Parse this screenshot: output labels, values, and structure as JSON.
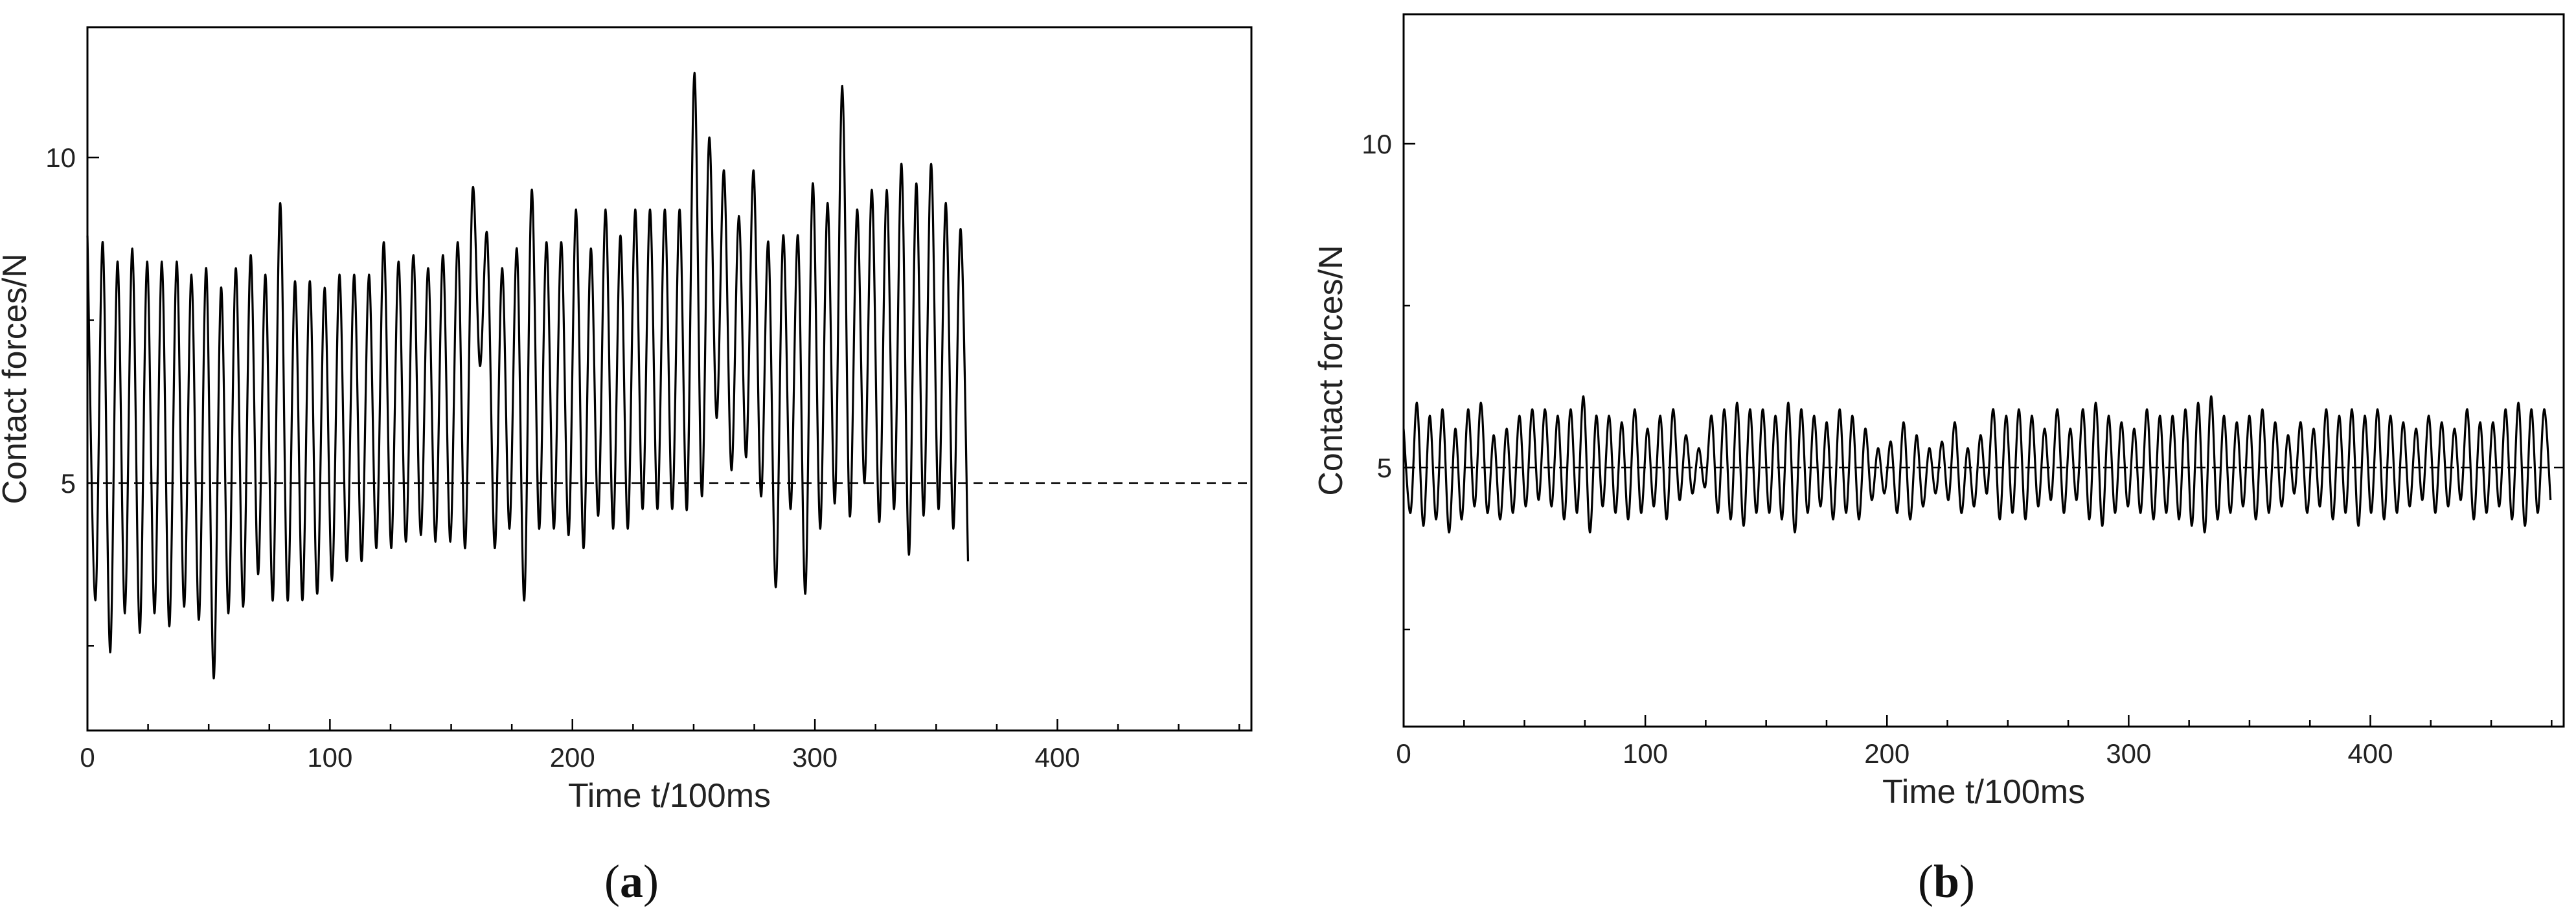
{
  "chart_data": [
    {
      "type": "line",
      "panel_label": "a",
      "xlabel": "Time t/100ms",
      "ylabel": "Contact forces/N",
      "xlim": [
        0,
        480
      ],
      "ylim": [
        1.2,
        12.0
      ],
      "xticks": [
        0,
        100,
        200,
        300,
        400
      ],
      "yticks": [
        5,
        10
      ],
      "reference_line": {
        "y": 5,
        "style": "dashed"
      },
      "series": [
        {
          "period": 6.1,
          "peaks": [
            8.8,
            8.7,
            8.4,
            8.6,
            8.4,
            8.4,
            8.4,
            8.2,
            8.3,
            8.0,
            8.3,
            8.5,
            8.2,
            9.3,
            8.1,
            8.1,
            8.0,
            8.2,
            8.2,
            8.2,
            8.7,
            8.4,
            8.5,
            8.3,
            8.5,
            8.7,
            9.5,
            8.8,
            8.3,
            8.6,
            9.5,
            8.7,
            8.7,
            9.2,
            8.6,
            9.2,
            8.8,
            9.2,
            9.2,
            9.2,
            9.2,
            11.3,
            10.3,
            9.8,
            9.1,
            9.8,
            8.7,
            8.8,
            8.8,
            9.6,
            9.3,
            11.1,
            9.2,
            9.5,
            9.5,
            9.9,
            9.6,
            9.9,
            9.3,
            8.9
          ],
          "troughs": [
            3.2,
            2.4,
            3.0,
            2.7,
            3.0,
            2.8,
            3.1,
            2.9,
            2.0,
            3.0,
            3.1,
            3.6,
            3.2,
            3.2,
            3.2,
            3.3,
            3.5,
            3.8,
            3.8,
            4.0,
            4.0,
            4.1,
            4.2,
            4.1,
            4.1,
            4.0,
            6.8,
            4.0,
            4.3,
            3.2,
            4.3,
            4.3,
            4.2,
            4.0,
            4.5,
            4.3,
            4.3,
            4.6,
            4.6,
            4.6,
            4.6,
            4.8,
            6.0,
            5.2,
            5.4,
            4.8,
            3.4,
            4.6,
            3.3,
            4.3,
            4.7,
            4.5,
            5.0,
            4.4,
            4.6,
            3.9,
            4.5,
            4.6,
            4.3,
            3.8
          ]
        }
      ]
    },
    {
      "type": "line",
      "panel_label": "b",
      "xlabel": "Time t/100ms",
      "ylabel": "Contact forces/N",
      "xlim": [
        0,
        480
      ],
      "ylim": [
        1.0,
        12.0
      ],
      "xticks": [
        0,
        100,
        200,
        300,
        400
      ],
      "yticks": [
        5,
        10
      ],
      "reference_line": {
        "y": 5,
        "style": "dashed"
      },
      "series": [
        {
          "period": 5.3,
          "peaks": [
            5.6,
            6.0,
            5.8,
            5.9,
            5.6,
            5.9,
            6.0,
            5.5,
            5.6,
            5.8,
            5.9,
            5.9,
            5.8,
            5.9,
            6.1,
            5.8,
            5.8,
            5.7,
            5.9,
            5.6,
            5.8,
            5.9,
            5.5,
            5.3,
            5.8,
            5.9,
            6.0,
            5.9,
            5.9,
            5.8,
            6.0,
            5.9,
            5.8,
            5.7,
            5.9,
            5.8,
            5.6,
            5.3,
            5.4,
            5.7,
            5.5,
            5.3,
            5.4,
            5.7,
            5.3,
            5.5,
            5.9,
            5.8,
            5.9,
            5.8,
            5.6,
            5.9,
            5.6,
            5.9,
            6.0,
            5.8,
            5.7,
            5.6,
            5.9,
            5.8,
            5.8,
            5.9,
            6.0,
            6.1,
            5.8,
            5.7,
            5.8,
            5.9,
            5.7,
            5.5,
            5.7,
            5.6,
            5.9,
            5.8,
            5.9,
            5.8,
            5.9,
            5.8,
            5.7,
            5.6,
            5.8,
            5.7,
            5.6,
            5.9,
            5.7,
            5.7,
            5.9,
            6.0,
            5.9,
            5.9
          ],
          "troughs": [
            4.3,
            4.1,
            4.2,
            4.0,
            4.2,
            4.4,
            4.3,
            4.2,
            4.3,
            4.4,
            4.5,
            4.4,
            4.2,
            4.3,
            4.0,
            4.4,
            4.3,
            4.2,
            4.3,
            4.4,
            4.2,
            4.5,
            4.6,
            4.7,
            4.3,
            4.2,
            4.1,
            4.3,
            4.3,
            4.2,
            4.0,
            4.3,
            4.4,
            4.2,
            4.3,
            4.2,
            4.5,
            4.6,
            4.3,
            4.2,
            4.4,
            4.6,
            4.5,
            4.3,
            4.4,
            4.6,
            4.2,
            4.3,
            4.2,
            4.4,
            4.5,
            4.3,
            4.5,
            4.2,
            4.1,
            4.3,
            4.4,
            4.3,
            4.2,
            4.3,
            4.2,
            4.1,
            4.0,
            4.2,
            4.3,
            4.4,
            4.2,
            4.3,
            4.4,
            4.6,
            4.3,
            4.4,
            4.2,
            4.3,
            4.1,
            4.3,
            4.2,
            4.3,
            4.4,
            4.5,
            4.3,
            4.4,
            4.5,
            4.2,
            4.3,
            4.4,
            4.2,
            4.1,
            4.3,
            4.5
          ]
        }
      ]
    }
  ]
}
